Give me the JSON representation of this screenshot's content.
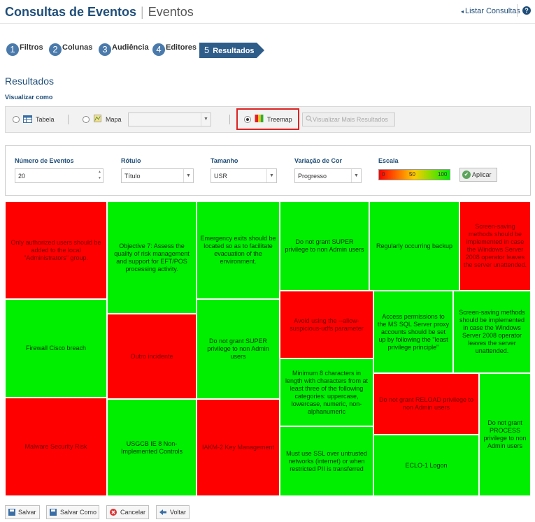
{
  "header": {
    "title": "Consultas de Eventos",
    "subtitle": "Eventos",
    "list_link": "Listar Consultas",
    "help": "?"
  },
  "steps": [
    {
      "num": "1",
      "label": "Filtros"
    },
    {
      "num": "2",
      "label": "Colunas"
    },
    {
      "num": "3",
      "label": "Audiência"
    },
    {
      "num": "4",
      "label": "Editores"
    },
    {
      "num": "5",
      "label": "Resultados"
    }
  ],
  "section_title": "Resultados",
  "view_as_label": "Visualizar como",
  "view_options": {
    "table": "Tabela",
    "map": "Mapa",
    "treemap": "Treemap",
    "more_results": "Visualizar Mais Resultados"
  },
  "filters": {
    "num_events": {
      "label": "Número de Eventos",
      "value": "20"
    },
    "rotulo": {
      "label": "Rótulo",
      "value": "Título"
    },
    "tamanho": {
      "label": "Tamanho",
      "value": "USR"
    },
    "variacao": {
      "label": "Variação de Cor",
      "value": "Progresso"
    },
    "escala": {
      "label": "Escala",
      "min": "0",
      "mid": "50",
      "max": "100"
    },
    "apply": "Aplicar"
  },
  "treemap": [
    {
      "label": "Only authorized users should be added to the local \"Administrators\" group.",
      "status": "red"
    },
    {
      "label": "Objective 7: Assess the quality of risk management and support for EFT/POS processing activity.",
      "status": "green"
    },
    {
      "label": "Emergency exits should be located so as to facilitate evacuation of the environment.",
      "status": "green"
    },
    {
      "label": "Do not grant SUPER privilege to non Admin users",
      "status": "green"
    },
    {
      "label": "Regularly occurring backup",
      "status": "green"
    },
    {
      "label": "Screen-saving methods should be implemented in case the Windows Server 2008 operator leaves the server unattended.",
      "status": "red"
    },
    {
      "label": "Firewall Cisco breach",
      "status": "green"
    },
    {
      "label": "Outro incidente",
      "status": "red"
    },
    {
      "label": "Do not grant SUPER privilege to non Admin users",
      "status": "green"
    },
    {
      "label": "Avoid using the --allow-suspicious-udfs parameter",
      "status": "red"
    },
    {
      "label": "Access permissions to the MS SQL Server proxy accounts should be set up by following the \"least privilege principle\"",
      "status": "green"
    },
    {
      "label": "Screen-saving methods should be implemented in case the Windows Server 2008 operator leaves the server unattended.",
      "status": "green"
    },
    {
      "label": "Minimum 8 characters in length with characters from at least three of the following categories: uppercase, lowercase, numeric, non-alphanumeric",
      "status": "green"
    },
    {
      "label": "Do not grant RELOAD privilege to non Admin users",
      "status": "red"
    },
    {
      "label": "Do not grant PROCESS privilege to non Admin users",
      "status": "green"
    },
    {
      "label": "Malware Security Risk",
      "status": "red"
    },
    {
      "label": "USGCB IE 8 Non-Implemented Controls",
      "status": "green"
    },
    {
      "label": "IAKM-2 Key Management",
      "status": "red"
    },
    {
      "label": "Must use SSL over untrusted networks (internet) or when restricted PII is transferred",
      "status": "green"
    },
    {
      "label": "ECLO-1 Logon",
      "status": "green"
    }
  ],
  "buttons": {
    "save": "Salvar",
    "save_as": "Salvar Como",
    "cancel": "Cancelar",
    "back": "Voltar"
  },
  "colors": {
    "red": "#ff0000",
    "green": "#00ee00",
    "accent": "#1f4e79"
  }
}
